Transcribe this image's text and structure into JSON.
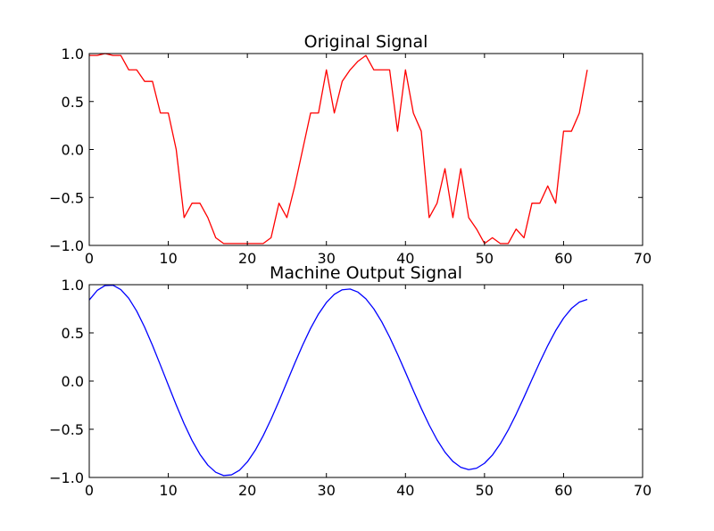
{
  "chart_data": [
    {
      "type": "line",
      "title": "Original Signal",
      "xlabel": "",
      "ylabel": "",
      "xlim": [
        0,
        70
      ],
      "ylim": [
        -1.0,
        1.0
      ],
      "xticks": [
        0,
        10,
        20,
        30,
        40,
        50,
        60,
        70
      ],
      "yticks": [
        -1.0,
        -0.5,
        0.0,
        0.5,
        1.0
      ],
      "xtick_labels": [
        "0",
        "10",
        "20",
        "30",
        "40",
        "50",
        "60",
        "70"
      ],
      "ytick_labels": [
        "−1.0",
        "−0.5",
        "0.0",
        "0.5",
        "1.0"
      ],
      "grid": false,
      "color": "#ff0000",
      "series": [
        {
          "x": [
            0,
            1,
            2,
            3,
            4,
            5,
            6,
            7,
            8,
            9,
            10,
            11,
            12,
            13,
            14,
            15,
            16,
            17,
            18,
            19,
            20,
            21,
            22,
            23,
            24,
            25,
            26,
            27,
            28,
            29,
            30,
            31,
            32,
            33,
            34,
            35,
            36,
            37,
            38,
            39,
            40,
            41,
            42,
            43,
            44,
            45,
            46,
            47,
            48,
            49,
            50,
            51,
            52,
            53,
            54,
            55,
            56,
            57,
            58,
            59,
            60,
            61,
            62,
            63
          ],
          "values": [
            0.98,
            0.98,
            1.0,
            0.98,
            0.98,
            0.83,
            0.83,
            0.71,
            0.71,
            0.38,
            0.38,
            0.0,
            -0.71,
            -0.56,
            -0.56,
            -0.71,
            -0.92,
            -0.98,
            -0.98,
            -0.98,
            -0.98,
            -0.98,
            -0.98,
            -0.92,
            -0.56,
            -0.71,
            -0.38,
            0.0,
            0.38,
            0.38,
            0.83,
            0.38,
            0.71,
            0.83,
            0.92,
            0.98,
            0.83,
            0.83,
            0.83,
            0.19,
            0.83,
            0.38,
            0.19,
            -0.71,
            -0.56,
            -0.2,
            -0.71,
            -0.2,
            -0.71,
            -0.83,
            -0.98,
            -0.92,
            -0.98,
            -0.98,
            -0.83,
            -0.92,
            -0.56,
            -0.56,
            -0.38,
            -0.56,
            0.19,
            0.19,
            0.38,
            0.83
          ]
        }
      ]
    },
    {
      "type": "line",
      "title": "Machine Output Signal",
      "xlabel": "",
      "ylabel": "",
      "xlim": [
        0,
        70
      ],
      "ylim": [
        -1.0,
        1.0
      ],
      "xticks": [
        0,
        10,
        20,
        30,
        40,
        50,
        60,
        70
      ],
      "yticks": [
        -1.0,
        -0.5,
        0.0,
        0.5,
        1.0
      ],
      "xtick_labels": [
        "0",
        "10",
        "20",
        "30",
        "40",
        "50",
        "60",
        "70"
      ],
      "ytick_labels": [
        "−1.0",
        "−0.5",
        "0.0",
        "0.5",
        "1.0"
      ],
      "grid": false,
      "color": "#0000ff",
      "series": [
        {
          "x": [
            0,
            1,
            2,
            3,
            4,
            5,
            6,
            7,
            8,
            9,
            10,
            11,
            12,
            13,
            14,
            15,
            16,
            17,
            18,
            19,
            20,
            21,
            22,
            23,
            24,
            25,
            26,
            27,
            28,
            29,
            30,
            31,
            32,
            33,
            34,
            35,
            36,
            37,
            38,
            39,
            40,
            41,
            42,
            43,
            44,
            45,
            46,
            47,
            48,
            49,
            50,
            51,
            52,
            53,
            54,
            55,
            56,
            57,
            58,
            59,
            60,
            61,
            62,
            63
          ],
          "values": [
            0.841,
            0.94,
            0.991,
            0.995,
            0.949,
            0.858,
            0.726,
            0.56,
            0.37,
            0.166,
            -0.042,
            -0.248,
            -0.442,
            -0.615,
            -0.76,
            -0.872,
            -0.946,
            -0.98,
            -0.973,
            -0.925,
            -0.839,
            -0.718,
            -0.568,
            -0.396,
            -0.208,
            -0.012,
            0.185,
            0.374,
            0.547,
            0.696,
            0.815,
            0.9,
            0.947,
            0.955,
            0.923,
            0.853,
            0.749,
            0.615,
            0.456,
            0.279,
            0.092,
            -0.098,
            -0.283,
            -0.456,
            -0.61,
            -0.738,
            -0.834,
            -0.895,
            -0.919,
            -0.904,
            -0.853,
            -0.768,
            -0.651,
            -0.508,
            -0.344,
            -0.167,
            0.016,
            0.197,
            0.368,
            0.523,
            0.653,
            0.753,
            0.819,
            0.847
          ]
        }
      ]
    }
  ]
}
